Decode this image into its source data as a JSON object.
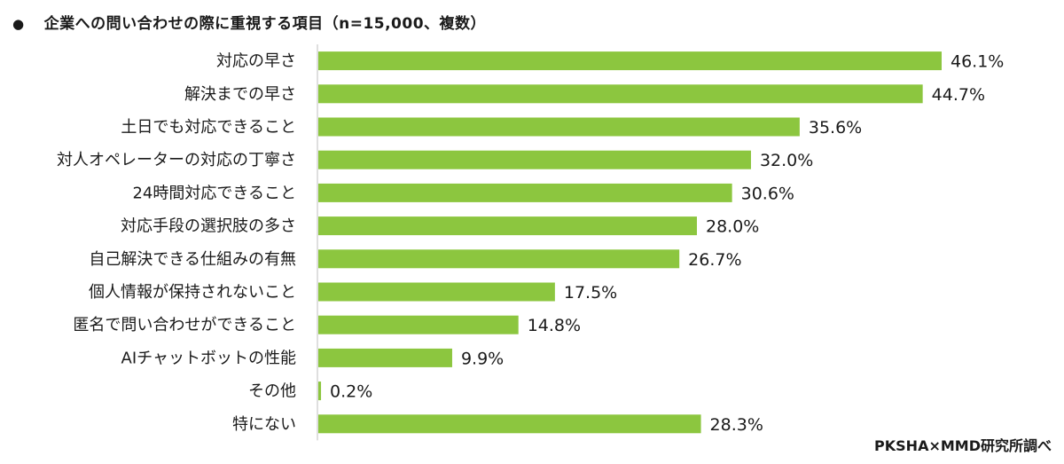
{
  "chart_data": {
    "type": "bar",
    "orientation": "horizontal",
    "title": "企業への問い合わせの際に重視する項目（n=15,000、複数）",
    "categories": [
      "対応の早さ",
      "解決までの早さ",
      "土日でも対応できること",
      "対人オペレーターの対応の丁寧さ",
      "24時間対応できること",
      "対応手段の選択肢の多さ",
      "自己解決できる仕組みの有無",
      "個人情報が保持されないこと",
      "匿名で問い合わせができること",
      "AIチャットボットの性能",
      "その他",
      "特にない"
    ],
    "values": [
      46.1,
      44.7,
      35.6,
      32.0,
      30.6,
      28.0,
      26.7,
      17.5,
      14.8,
      9.9,
      0.2,
      28.3
    ],
    "value_labels": [
      "46.1%",
      "44.7%",
      "35.6%",
      "32.0%",
      "30.6%",
      "28.0%",
      "26.7%",
      "17.5%",
      "14.8%",
      "9.9%",
      "0.2%",
      "28.3%"
    ],
    "xlim": [
      0,
      50
    ],
    "bar_color": "#8cc63f",
    "grid": false,
    "source": "PKSHA×MMD研究所調べ"
  }
}
